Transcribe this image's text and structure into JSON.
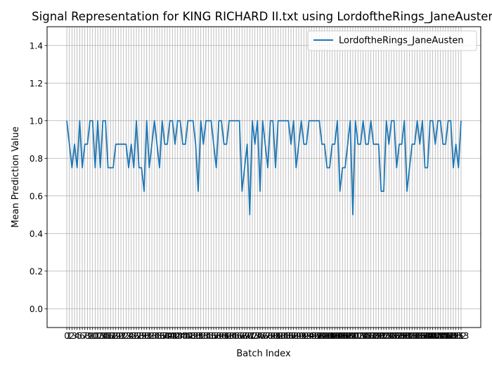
{
  "chart_data": {
    "type": "line",
    "title": "Signal Representation for KING RICHARD II.txt using LordoftheRings_JaneAusten",
    "xlabel": "Batch Index",
    "ylabel": "Mean Prediction Value",
    "ylim": [
      -0.1,
      1.5
    ],
    "xlim": [
      -7.65,
      160.65
    ],
    "grid": true,
    "legend_position": "top-right",
    "yticks": [
      0.0,
      0.2,
      0.4,
      0.6,
      0.8,
      1.0,
      1.2,
      1.4
    ],
    "series": [
      {
        "name": "LordoftheRings_JaneAusten",
        "color": "#1f77b4",
        "y": [
          1.0,
          0.875,
          0.75,
          0.875,
          0.75,
          1.0,
          0.75,
          0.875,
          0.875,
          1.0,
          1.0,
          0.75,
          1.0,
          0.75,
          1.0,
          1.0,
          0.75,
          0.75,
          0.75,
          0.875,
          0.875,
          0.875,
          0.875,
          0.875,
          0.75,
          0.875,
          0.75,
          1.0,
          0.75,
          0.75,
          0.625,
          1.0,
          0.75,
          0.875,
          1.0,
          0.875,
          0.75,
          1.0,
          0.875,
          0.875,
          1.0,
          1.0,
          0.875,
          1.0,
          1.0,
          0.875,
          0.875,
          1.0,
          1.0,
          1.0,
          0.875,
          0.625,
          1.0,
          0.875,
          1.0,
          1.0,
          1.0,
          0.875,
          0.75,
          1.0,
          1.0,
          0.875,
          0.875,
          1.0,
          1.0,
          1.0,
          1.0,
          1.0,
          0.625,
          0.75,
          0.875,
          0.5,
          1.0,
          0.875,
          1.0,
          0.625,
          1.0,
          0.875,
          0.75,
          1.0,
          1.0,
          0.75,
          1.0,
          1.0,
          1.0,
          1.0,
          1.0,
          0.875,
          1.0,
          0.75,
          0.875,
          1.0,
          0.875,
          0.875,
          1.0,
          1.0,
          1.0,
          1.0,
          1.0,
          0.875,
          0.875,
          0.75,
          0.75,
          0.875,
          0.875,
          1.0,
          0.625,
          0.75,
          0.75,
          0.875,
          1.0,
          0.5,
          1.0,
          0.875,
          0.875,
          1.0,
          0.875,
          0.875,
          1.0,
          0.875,
          0.875,
          0.875,
          0.625,
          0.625,
          1.0,
          0.875,
          1.0,
          1.0,
          0.75,
          0.875,
          0.875,
          1.0,
          0.625,
          0.75,
          0.875,
          0.875,
          1.0,
          0.875,
          1.0,
          0.75,
          0.75,
          1.0,
          1.0,
          0.875,
          1.0,
          1.0,
          0.875,
          0.875,
          1.0,
          1.0,
          0.75,
          0.875,
          0.75,
          1.0
        ]
      }
    ]
  }
}
